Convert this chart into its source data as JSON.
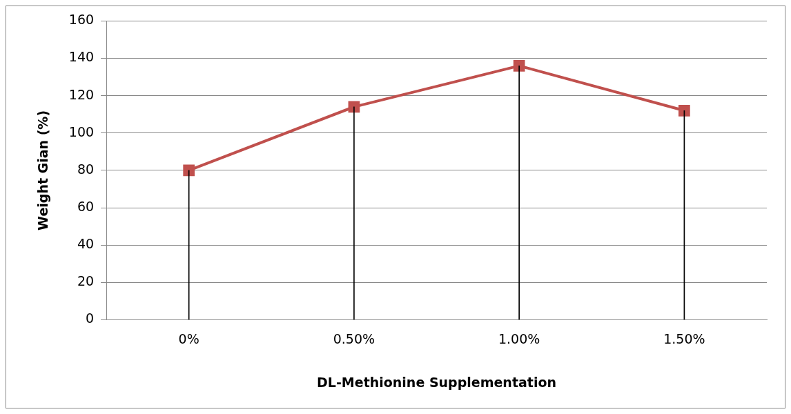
{
  "chart_data": {
    "type": "line",
    "xlabel": "DL-Methionine Supplementation",
    "ylabel": "Weight Gian (%)",
    "categories": [
      "0%",
      "0.50%",
      "1.00%",
      "1.50%"
    ],
    "series": [
      {
        "color": "#c0504d",
        "values": [
          80,
          114,
          136,
          112
        ]
      },
      {
        "type": "bar",
        "color": "#000000",
        "values": [
          80,
          114,
          136,
          112
        ]
      }
    ],
    "ylim": [
      0,
      160
    ],
    "yticks": [
      0,
      20,
      40,
      60,
      80,
      100,
      120,
      140,
      160
    ],
    "grid": "y",
    "legend": false,
    "marker": "square",
    "line_style": "solid"
  }
}
